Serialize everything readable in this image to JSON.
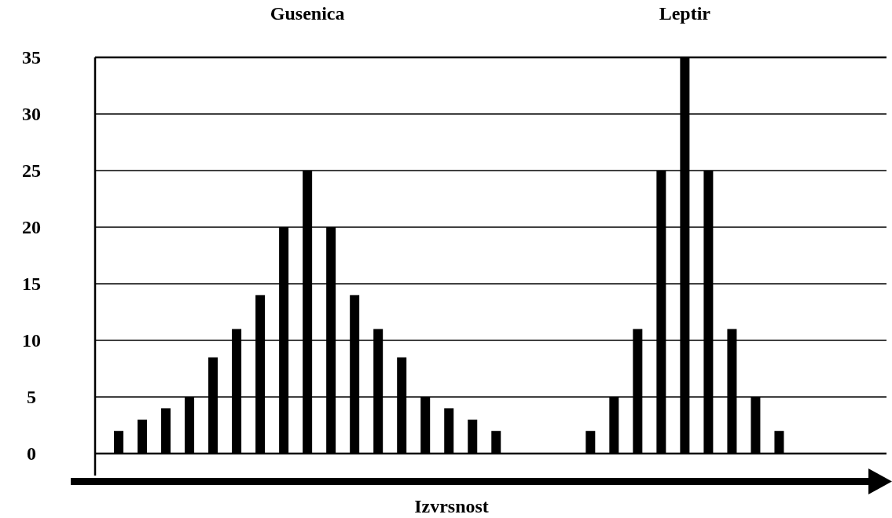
{
  "chart_data": {
    "type": "bar",
    "xlabel": "Izvrsnost",
    "annotations": [
      "Gusenica",
      "Leptir"
    ],
    "categories": [
      null,
      null,
      null,
      null,
      null,
      null,
      null,
      null,
      null,
      null,
      null,
      null,
      null,
      null,
      null,
      null,
      null,
      null,
      null,
      null,
      null,
      null,
      null,
      null,
      null,
      null,
      null,
      null,
      null,
      null,
      null,
      null,
      null
    ],
    "values": [
      2,
      3,
      4,
      5,
      8.5,
      11,
      14,
      20,
      25,
      20,
      14,
      11,
      8.5,
      5,
      4,
      3,
      2,
      null,
      null,
      null,
      2,
      5,
      11,
      25,
      35,
      25,
      11,
      5,
      2,
      null,
      null,
      null,
      null
    ],
    "color": "#000000",
    "ylim": [
      0,
      35
    ],
    "yticks": [
      0,
      5,
      10,
      15,
      20,
      25,
      30,
      35
    ],
    "grid": "y"
  }
}
